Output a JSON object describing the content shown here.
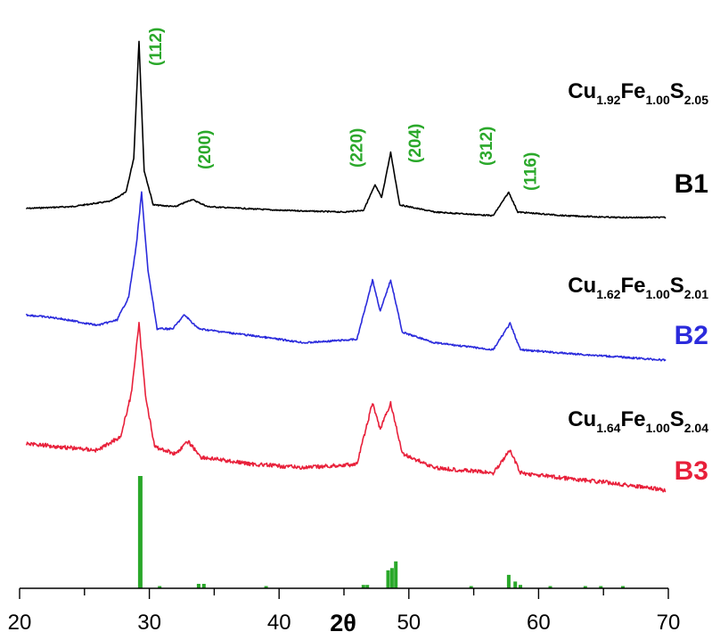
{
  "chart_data": {
    "type": "line",
    "title": "",
    "xlabel": "2θ",
    "ylabel": "",
    "xlim": [
      20,
      70
    ],
    "x_ticks": [
      "20",
      "30",
      "40",
      "50",
      "60",
      "70"
    ],
    "grid": false,
    "colors": {
      "B1": "#000000",
      "B2": "#2b2bdc",
      "B3": "#e8203a",
      "reference": "#2aa82a",
      "hkl": "#2aa82a"
    },
    "series": [
      {
        "name": "B1",
        "formula": {
          "el1": "Cu",
          "sub1": "1.92",
          "el2": "Fe",
          "sub2": "1.00",
          "el3": "S",
          "sub3": "2.05"
        },
        "points": [
          [
            20.5,
            0.07
          ],
          [
            24,
            0.08
          ],
          [
            27,
            0.11
          ],
          [
            28.2,
            0.16
          ],
          [
            28.8,
            0.35
          ],
          [
            29.2,
            1.0
          ],
          [
            29.6,
            0.28
          ],
          [
            30.3,
            0.09
          ],
          [
            32,
            0.08
          ],
          [
            33.3,
            0.12
          ],
          [
            34.5,
            0.08
          ],
          [
            40,
            0.06
          ],
          [
            45,
            0.05
          ],
          [
            46.5,
            0.06
          ],
          [
            47.4,
            0.2
          ],
          [
            47.9,
            0.13
          ],
          [
            48.6,
            0.38
          ],
          [
            49.3,
            0.09
          ],
          [
            52,
            0.05
          ],
          [
            56.5,
            0.03
          ],
          [
            57.7,
            0.16
          ],
          [
            58.4,
            0.05
          ],
          [
            62,
            0.03
          ],
          [
            66,
            0.02
          ],
          [
            69.8,
            0.02
          ]
        ]
      },
      {
        "name": "B2",
        "formula": {
          "el1": "Cu",
          "sub1": "1.62",
          "el2": "Fe",
          "sub2": "1.00",
          "el3": "S",
          "sub3": "2.01"
        },
        "points": [
          [
            20.5,
            0.3
          ],
          [
            23,
            0.28
          ],
          [
            26,
            0.24
          ],
          [
            27.5,
            0.27
          ],
          [
            28.4,
            0.4
          ],
          [
            29.0,
            0.7
          ],
          [
            29.4,
            1.0
          ],
          [
            29.9,
            0.55
          ],
          [
            30.6,
            0.22
          ],
          [
            31.8,
            0.22
          ],
          [
            32.7,
            0.3
          ],
          [
            33.8,
            0.22
          ],
          [
            38,
            0.18
          ],
          [
            42,
            0.14
          ],
          [
            46,
            0.16
          ],
          [
            47.2,
            0.5
          ],
          [
            47.8,
            0.32
          ],
          [
            48.6,
            0.5
          ],
          [
            49.5,
            0.2
          ],
          [
            52,
            0.14
          ],
          [
            56.5,
            0.1
          ],
          [
            57.8,
            0.25
          ],
          [
            58.6,
            0.1
          ],
          [
            62,
            0.08
          ],
          [
            66,
            0.06
          ],
          [
            69.8,
            0.04
          ]
        ]
      },
      {
        "name": "B3",
        "formula": {
          "el1": "Cu",
          "sub1": "1.64",
          "el2": "Fe",
          "sub2": "1.00",
          "el3": "S",
          "sub3": "2.04"
        },
        "points": [
          [
            20.5,
            0.32
          ],
          [
            23,
            0.3
          ],
          [
            26,
            0.28
          ],
          [
            27.8,
            0.36
          ],
          [
            28.6,
            0.6
          ],
          [
            29.2,
            1.0
          ],
          [
            29.7,
            0.6
          ],
          [
            30.4,
            0.3
          ],
          [
            32,
            0.26
          ],
          [
            33,
            0.33
          ],
          [
            34,
            0.24
          ],
          [
            38,
            0.2
          ],
          [
            42,
            0.18
          ],
          [
            46,
            0.2
          ],
          [
            47.2,
            0.55
          ],
          [
            47.8,
            0.4
          ],
          [
            48.6,
            0.55
          ],
          [
            49.5,
            0.26
          ],
          [
            52,
            0.18
          ],
          [
            56.5,
            0.15
          ],
          [
            57.8,
            0.28
          ],
          [
            58.6,
            0.15
          ],
          [
            62,
            0.12
          ],
          [
            66,
            0.09
          ],
          [
            69.8,
            0.05
          ]
        ]
      }
    ],
    "reference_pattern": {
      "sticks": [
        [
          29.3,
          1.0
        ],
        [
          30.8,
          0.02
        ],
        [
          33.8,
          0.04
        ],
        [
          34.2,
          0.04
        ],
        [
          39.0,
          0.02
        ],
        [
          46.5,
          0.03
        ],
        [
          46.8,
          0.03
        ],
        [
          48.4,
          0.16
        ],
        [
          48.7,
          0.18
        ],
        [
          49.0,
          0.24
        ],
        [
          54.8,
          0.02
        ],
        [
          57.7,
          0.12
        ],
        [
          58.2,
          0.06
        ],
        [
          58.6,
          0.03
        ],
        [
          60.9,
          0.02
        ],
        [
          63.6,
          0.02
        ],
        [
          64.8,
          0.02
        ],
        [
          66.5,
          0.02
        ]
      ]
    },
    "hkl_labels": [
      {
        "text": "(112)",
        "x": 30.5
      },
      {
        "text": "(200)",
        "x": 34.3
      },
      {
        "text": "(220)",
        "x": 46.0
      },
      {
        "text": "(204)",
        "x": 50.5
      },
      {
        "text": "(312)",
        "x": 56.0
      },
      {
        "text": "(116)",
        "x": 59.4
      }
    ]
  }
}
